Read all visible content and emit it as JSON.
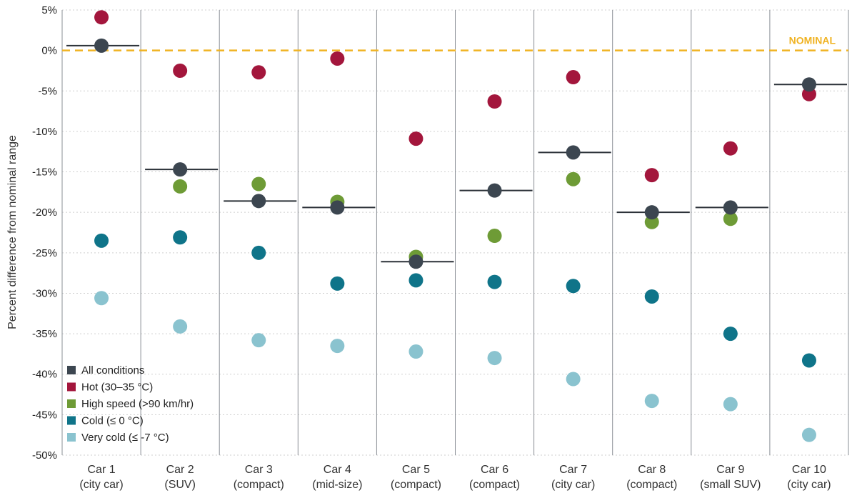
{
  "chart_data": {
    "type": "scatter",
    "ylabel": "Percent difference from nominal range",
    "xlabel": "",
    "ylim": [
      -50,
      5
    ],
    "yticks": [
      5,
      0,
      -5,
      -10,
      -15,
      -20,
      -25,
      -30,
      -35,
      -40,
      -45,
      -50
    ],
    "ytick_labels": [
      "5%",
      "0%",
      "-5%",
      "-10%",
      "-15%",
      "-20%",
      "-25%",
      "-30%",
      "-35%",
      "-40%",
      "-45%",
      "-50%"
    ],
    "grid": true,
    "legend_position": "bottom-left",
    "reference_line": {
      "label": "NOMINAL",
      "value": 0,
      "color": "#F0B323"
    },
    "categories": [
      {
        "name": "Car 1",
        "type": "(city car)"
      },
      {
        "name": "Car 2",
        "type": "(SUV)"
      },
      {
        "name": "Car 3",
        "type": "(compact)"
      },
      {
        "name": "Car 4",
        "type": "(mid-size)"
      },
      {
        "name": "Car 5",
        "type": "(compact)"
      },
      {
        "name": "Car 6",
        "type": "(compact)"
      },
      {
        "name": "Car 7",
        "type": "(city car)"
      },
      {
        "name": "Car 8",
        "type": "(compact)"
      },
      {
        "name": "Car 9",
        "type": "(small SUV)"
      },
      {
        "name": "Car 10",
        "type": "(city car)"
      }
    ],
    "series": [
      {
        "name": "Hot (30–35 °C)",
        "color": "#A3163C",
        "values": [
          4.1,
          -2.5,
          -2.7,
          -1.0,
          -10.9,
          -6.3,
          -3.3,
          -15.4,
          -12.1,
          -5.4
        ]
      },
      {
        "name": "High speed (>90 km/hr)",
        "color": "#6E9B36",
        "values": [
          null,
          -16.8,
          -16.5,
          -18.7,
          -25.5,
          -22.9,
          -15.9,
          -21.2,
          -20.8,
          null
        ]
      },
      {
        "name": "Cold (≤ 0 °C)",
        "color": "#0F7489",
        "values": [
          -23.5,
          -23.1,
          -25.0,
          -28.8,
          -28.4,
          -28.6,
          -29.1,
          -30.4,
          -35.0,
          -38.3
        ]
      },
      {
        "name": "Very cold (≤ -7 °C)",
        "color": "#8AC3CF",
        "values": [
          -30.6,
          -34.1,
          -35.8,
          -36.5,
          -37.2,
          -38.0,
          -40.6,
          -43.3,
          -43.7,
          -47.5
        ]
      },
      {
        "name": "All conditions",
        "color": "#3C4650",
        "values": [
          0.6,
          -14.7,
          -18.6,
          -19.4,
          -26.1,
          -17.3,
          -12.6,
          -20.0,
          -19.4,
          -4.2
        ]
      }
    ],
    "legend": [
      {
        "name": "All conditions",
        "color": "#3C4650"
      },
      {
        "name": "Hot (30–35 °C)",
        "color": "#A3163C"
      },
      {
        "name": "High speed (>90 km/hr)",
        "color": "#6E9B36"
      },
      {
        "name": "Cold (≤ 0 °C)",
        "color": "#0F7489"
      },
      {
        "name": "Very cold (≤ -7 °C)",
        "color": "#8AC3CF"
      }
    ]
  }
}
